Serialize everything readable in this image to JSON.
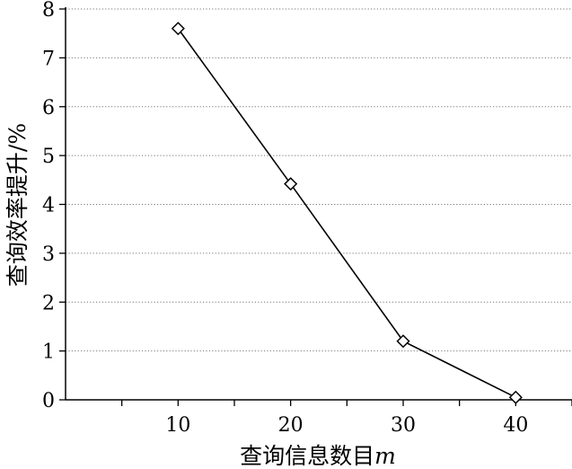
{
  "chart_data": {
    "type": "line",
    "xlabel": "查询信息数目",
    "xlabel_var": "m",
    "ylabel": "查询效率提升/%",
    "x": [
      10,
      20,
      30,
      40
    ],
    "series": [
      {
        "values": [
          7.6,
          4.42,
          1.2,
          0.05
        ],
        "marker": "diamond",
        "color": "#000000"
      }
    ],
    "xticks": [
      "10",
      "20",
      "30",
      "40"
    ],
    "xlim": [
      0,
      45
    ],
    "ylim": [
      0,
      8
    ],
    "yticks": [
      "0",
      "1",
      "2",
      "3",
      "4",
      "5",
      "6",
      "7",
      "8"
    ],
    "grid": "horizontal-dotted"
  }
}
